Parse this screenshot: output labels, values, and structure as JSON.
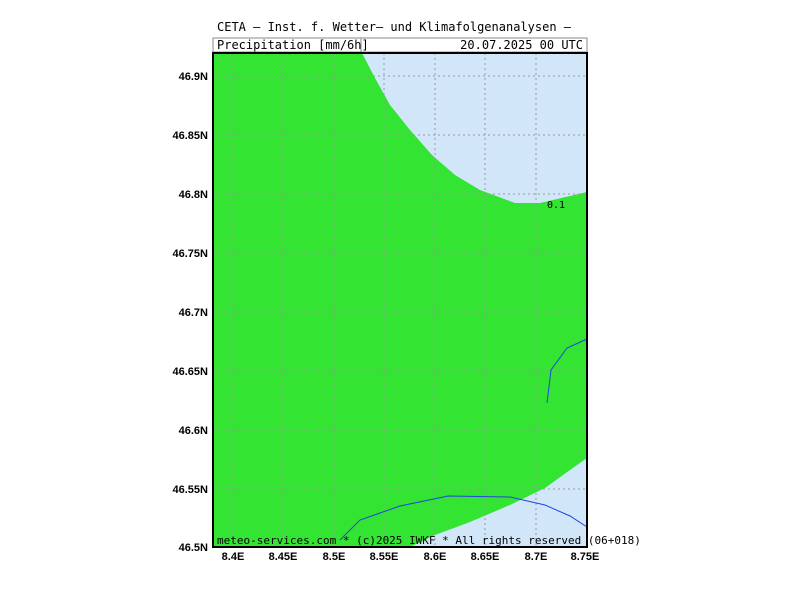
{
  "header": {
    "line1": "CETA — Inst. f. Wetter— und Klimafolgenanalysen —",
    "variable": "Precipitation [mm/6h]",
    "datetime": "20.07.2025 00 UTC"
  },
  "map": {
    "lon_range": [
      8.38,
      8.75
    ],
    "lat_range": [
      46.5,
      46.92
    ],
    "lon_ticks": [
      "8.4E",
      "8.45E",
      "8.5E",
      "8.55E",
      "8.6E",
      "8.65E",
      "8.7E",
      "8.75E"
    ],
    "lat_ticks": [
      "46.9N",
      "46.85N",
      "46.8N",
      "46.75N",
      "46.7N",
      "46.65N",
      "46.6N",
      "46.55N",
      "46.5N"
    ],
    "grid": true,
    "contour_label": "0.1",
    "colors": {
      "precip_fill": "#33e433",
      "background_fill": "#d2e6fa",
      "border_line": "#2244dd",
      "grid": "#999999"
    }
  },
  "footer": {
    "copyright": "meteo-services.com * (c)2025 IWKF * All rights reserved (06+018)"
  }
}
